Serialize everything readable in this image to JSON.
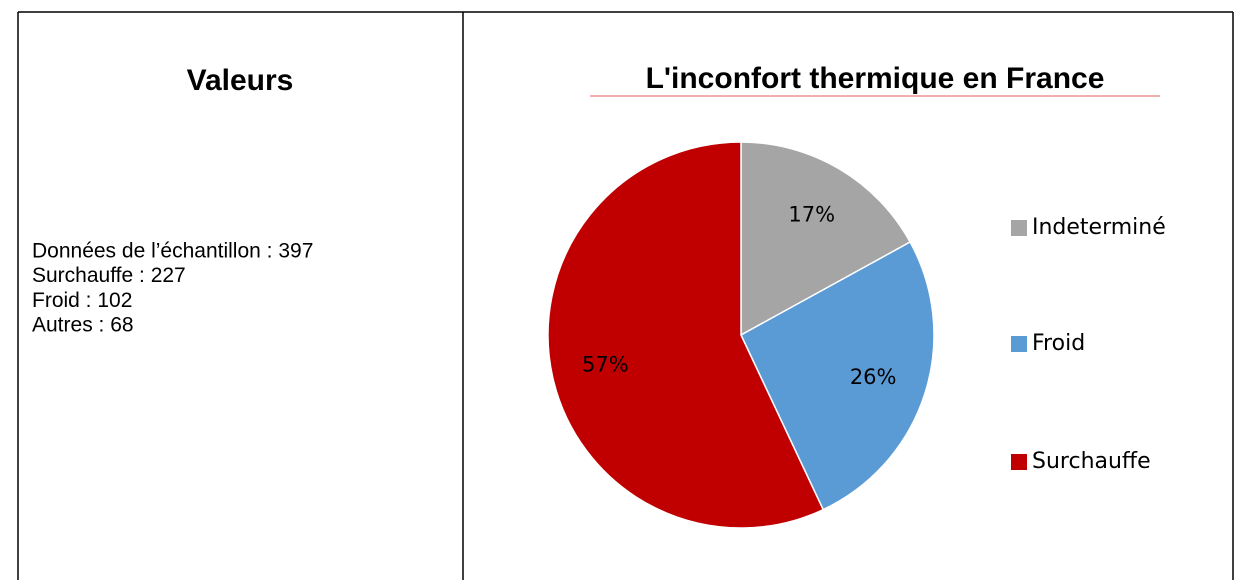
{
  "panel": {
    "title": "Valeurs",
    "lines": [
      "Données de l’échantillon : 397",
      "Surchauffe : 227",
      "Froid : 102",
      "Autres : 68"
    ]
  },
  "chart_data": {
    "type": "pie",
    "title": "L'inconfort thermique en France",
    "categories": [
      "Indeterminé",
      "Froid",
      "Surchauffe"
    ],
    "values": [
      17,
      26,
      57
    ],
    "value_labels": [
      "17%",
      "26%",
      "57%"
    ],
    "colors": [
      "#a5a5a5",
      "#5b9bd5",
      "#c00000"
    ],
    "legend": "right"
  }
}
